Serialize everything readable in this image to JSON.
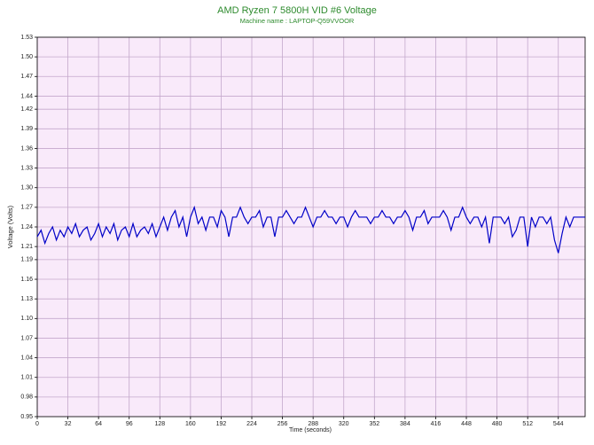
{
  "chart_data": {
    "type": "line",
    "title": "AMD Ryzen 7 5800H VID #6 Voltage",
    "subtitle": "Machine name : LAPTOP-Q59VVOOR",
    "x_label": "Time (seconds)",
    "y_label": "Voltage (Volts)",
    "xlim": [
      0,
      572
    ],
    "ylim": [
      0.95,
      1.53
    ],
    "xticks": [
      0,
      32,
      64,
      96,
      128,
      160,
      192,
      224,
      256,
      288,
      320,
      352,
      384,
      416,
      448,
      480,
      512,
      544
    ],
    "yticks": [
      0.95,
      0.98,
      1.01,
      1.04,
      1.07,
      {
        "value": 1.1,
        "label": "1.10"
      },
      1.13,
      1.16,
      1.19,
      1.21,
      1.24,
      1.27,
      {
        "value": 1.3,
        "label": "1.30"
      },
      1.33,
      1.36,
      1.39,
      1.42,
      1.44,
      1.47,
      {
        "value": 1.5,
        "label": "1.50"
      },
      1.53
    ],
    "grid": true,
    "x": [
      0,
      4,
      8,
      12,
      16,
      20,
      24,
      28,
      32,
      36,
      40,
      44,
      48,
      52,
      56,
      60,
      64,
      68,
      72,
      76,
      80,
      84,
      88,
      92,
      96,
      100,
      104,
      108,
      112,
      116,
      120,
      124,
      128,
      132,
      136,
      140,
      144,
      148,
      152,
      156,
      160,
      164,
      168,
      172,
      176,
      180,
      184,
      188,
      192,
      196,
      200,
      204,
      208,
      212,
      216,
      220,
      224,
      228,
      232,
      236,
      240,
      244,
      248,
      252,
      256,
      260,
      264,
      268,
      272,
      276,
      280,
      284,
      288,
      292,
      296,
      300,
      304,
      308,
      312,
      316,
      320,
      324,
      328,
      332,
      336,
      340,
      344,
      348,
      352,
      356,
      360,
      364,
      368,
      372,
      376,
      380,
      384,
      388,
      392,
      396,
      400,
      404,
      408,
      412,
      416,
      420,
      424,
      428,
      432,
      436,
      440,
      444,
      448,
      452,
      456,
      460,
      464,
      468,
      472,
      476,
      480,
      484,
      488,
      492,
      496,
      500,
      504,
      508,
      512,
      516,
      520,
      524,
      528,
      532,
      536,
      540,
      544,
      548,
      552,
      556,
      560,
      564,
      568,
      572
    ],
    "series": [
      {
        "name": "VID #6",
        "color": "#0000c8",
        "values": [
          1.225,
          1.235,
          1.215,
          1.23,
          1.24,
          1.22,
          1.235,
          1.225,
          1.24,
          1.23,
          1.245,
          1.225,
          1.235,
          1.24,
          1.22,
          1.23,
          1.245,
          1.225,
          1.24,
          1.23,
          1.245,
          1.22,
          1.235,
          1.24,
          1.225,
          1.245,
          1.225,
          1.235,
          1.24,
          1.23,
          1.245,
          1.225,
          1.24,
          1.255,
          1.235,
          1.255,
          1.265,
          1.24,
          1.255,
          1.225,
          1.255,
          1.27,
          1.245,
          1.255,
          1.235,
          1.255,
          1.255,
          1.24,
          1.265,
          1.255,
          1.225,
          1.255,
          1.255,
          1.27,
          1.255,
          1.245,
          1.255,
          1.255,
          1.265,
          1.24,
          1.255,
          1.255,
          1.225,
          1.255,
          1.255,
          1.265,
          1.255,
          1.245,
          1.255,
          1.255,
          1.27,
          1.255,
          1.24,
          1.255,
          1.255,
          1.265,
          1.255,
          1.255,
          1.245,
          1.255,
          1.255,
          1.24,
          1.255,
          1.265,
          1.255,
          1.255,
          1.255,
          1.245,
          1.255,
          1.255,
          1.265,
          1.255,
          1.255,
          1.245,
          1.255,
          1.255,
          1.265,
          1.255,
          1.235,
          1.255,
          1.255,
          1.265,
          1.245,
          1.255,
          1.255,
          1.255,
          1.265,
          1.255,
          1.235,
          1.255,
          1.255,
          1.27,
          1.255,
          1.245,
          1.255,
          1.255,
          1.24,
          1.255,
          1.215,
          1.255,
          1.255,
          1.255,
          1.245,
          1.255,
          1.225,
          1.235,
          1.255,
          1.255,
          1.21,
          1.255,
          1.24,
          1.255,
          1.255,
          1.245,
          1.255,
          1.22,
          1.2,
          1.23,
          1.255,
          1.24,
          1.255,
          1.255,
          1.255,
          1.255
        ]
      }
    ]
  }
}
